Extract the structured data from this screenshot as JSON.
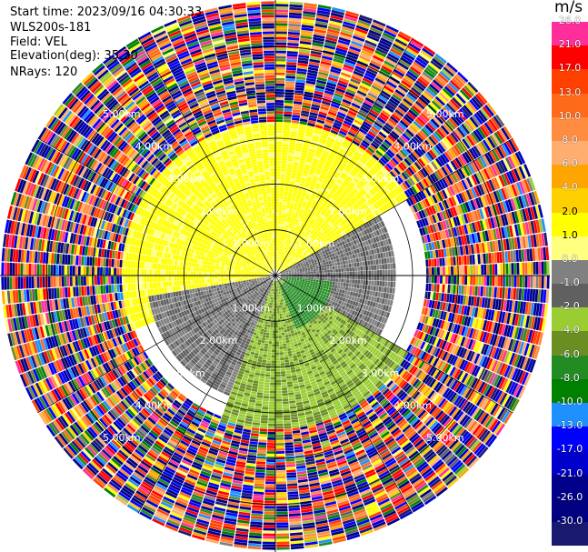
{
  "header": {
    "start_time": "Start time: 2023/09/16 04:30:33",
    "instrument": "WLS200s-181",
    "field": "Field: VEL",
    "elevation": "Elevation(deg): 35.30",
    "nrays": "NRays: 120"
  },
  "colorbar": {
    "unit": "m/s",
    "levels": [
      "26.0",
      "21.0",
      "17.0",
      "13.0",
      "10.0",
      "8.0",
      "6.0",
      "4.0",
      "2.0",
      "1.0",
      "0.0",
      "-1.0",
      "-2.0",
      "-4.0",
      "-6.0",
      "-8.0",
      "-10.0",
      "-13.0",
      "-17.0",
      "-21.0",
      "-26.0",
      "-30.0"
    ],
    "colors": [
      "#ff2e9a",
      "#ff0000",
      "#ff4000",
      "#ff6a1a",
      "#ff8c40",
      "#ffae70",
      "#ffa500",
      "#ffd000",
      "#ffff00",
      "#ffff80",
      "#808080",
      "#606060",
      "#9acd32",
      "#6b8e23",
      "#228b22",
      "#008000",
      "#1e90ff",
      "#0000ff",
      "#0000cd",
      "#00008b",
      "#000080",
      "#191970"
    ]
  },
  "chart_data": {
    "type": "heatmap",
    "projection": "polar PPI",
    "field": "VEL",
    "unit": "m/s",
    "nrays": 120,
    "elevation_deg": 35.3,
    "max_range_km": 6,
    "range_ring_labels": [
      "1.00km",
      "2.00km",
      "3.00km",
      "4.00km",
      "5.00km"
    ],
    "range_rings_km": [
      1,
      2,
      3,
      4,
      5
    ],
    "regions": [
      {
        "description": "positive velocity",
        "value_ms": 2.5,
        "az_from": 250,
        "az_to": 60,
        "r_from": 0.1,
        "r_to": 3.4
      },
      {
        "description": "near-zero velocity",
        "value_ms": 0.0,
        "az_from": 60,
        "az_to": 120,
        "r_from": 0.1,
        "r_to": 2.6
      },
      {
        "description": "near-zero velocity",
        "value_ms": 0.0,
        "az_from": 200,
        "az_to": 260,
        "r_from": 0.1,
        "r_to": 2.8
      },
      {
        "description": "negative velocity",
        "value_ms": -1.8,
        "az_from": 120,
        "az_to": 200,
        "r_from": 0.1,
        "r_to": 3.3
      },
      {
        "description": "negative velocity",
        "value_ms": -5.0,
        "az_from": 95,
        "az_to": 160,
        "r_from": 0.2,
        "r_to": 1.2
      }
    ],
    "noise_beyond_km": 3.3
  }
}
